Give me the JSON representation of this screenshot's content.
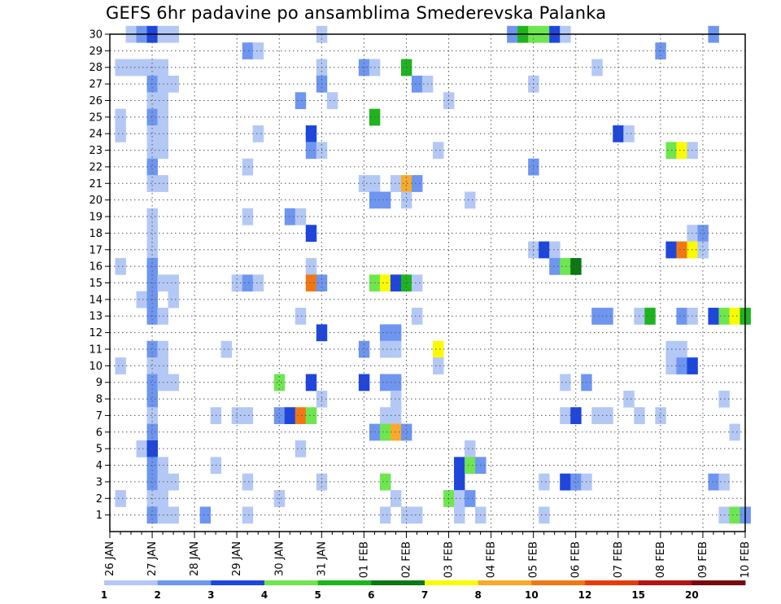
{
  "chart_data": {
    "type": "heatmap",
    "title": "GEFS 6hr padavine po ansamblima Smederevska Palanka",
    "xlabel": "",
    "ylabel": "",
    "x_tick_labels": [
      "26 JAN",
      "27 JAN",
      "28 JAN",
      "29 JAN",
      "30 JAN",
      "31 JAN",
      "01 FEB",
      "02 FEB",
      "03 FEB",
      "04 FEB",
      "05 FEB",
      "06 FEB",
      "07 FEB",
      "08 FEB",
      "09 FEB",
      "10 FEB"
    ],
    "y_tick_labels": [
      "1",
      "2",
      "3",
      "4",
      "5",
      "6",
      "7",
      "8",
      "9",
      "10",
      "11",
      "12",
      "13",
      "14",
      "15",
      "16",
      "17",
      "18",
      "19",
      "20",
      "21",
      "22",
      "23",
      "24",
      "25",
      "26",
      "27",
      "28",
      "29",
      "30"
    ],
    "time_steps_per_day": 4,
    "n_time_steps": 60,
    "grid": true,
    "colorbar": {
      "position": "bottom",
      "labels": [
        "1",
        "2",
        "3",
        "4",
        "5",
        "6",
        "7",
        "8",
        "10",
        "12",
        "15",
        "20"
      ],
      "colors": [
        "#b4c8f5",
        "#6e96f0",
        "#1e46dc",
        "#6ee650",
        "#1eb41e",
        "#0a7814",
        "#fafa00",
        "#faaa28",
        "#f07814",
        "#e63c0a",
        "#b41414",
        "#780a0a"
      ]
    },
    "cells": [
      [
        2,
        30,
        1
      ],
      [
        3,
        30,
        2
      ],
      [
        4,
        30,
        3
      ],
      [
        5,
        30,
        1
      ],
      [
        6,
        30,
        1
      ],
      [
        20,
        30,
        1
      ],
      [
        38,
        30,
        2
      ],
      [
        39,
        30,
        5
      ],
      [
        40,
        30,
        4
      ],
      [
        41,
        30,
        4
      ],
      [
        42,
        30,
        3
      ],
      [
        43,
        30,
        1
      ],
      [
        57,
        30,
        2
      ],
      [
        13,
        29,
        2
      ],
      [
        14,
        29,
        1
      ],
      [
        52,
        29,
        2
      ],
      [
        1,
        28,
        1
      ],
      [
        2,
        28,
        1
      ],
      [
        3,
        28,
        1
      ],
      [
        4,
        28,
        1
      ],
      [
        5,
        28,
        1
      ],
      [
        20,
        28,
        1
      ],
      [
        24,
        28,
        2
      ],
      [
        25,
        28,
        1
      ],
      [
        28,
        28,
        5
      ],
      [
        46,
        28,
        1
      ],
      [
        4,
        27,
        2
      ],
      [
        5,
        27,
        1
      ],
      [
        6,
        27,
        1
      ],
      [
        20,
        27,
        2
      ],
      [
        29,
        27,
        2
      ],
      [
        30,
        27,
        1
      ],
      [
        40,
        27,
        1
      ],
      [
        4,
        26,
        1
      ],
      [
        5,
        26,
        1
      ],
      [
        18,
        26,
        2
      ],
      [
        21,
        26,
        1
      ],
      [
        32,
        26,
        1
      ],
      [
        1,
        25,
        1
      ],
      [
        4,
        25,
        2
      ],
      [
        5,
        25,
        1
      ],
      [
        25,
        25,
        5
      ],
      [
        1,
        24,
        1
      ],
      [
        4,
        24,
        1
      ],
      [
        5,
        24,
        1
      ],
      [
        14,
        24,
        1
      ],
      [
        19,
        24,
        3
      ],
      [
        48,
        24,
        3
      ],
      [
        49,
        24,
        1
      ],
      [
        4,
        23,
        1
      ],
      [
        5,
        23,
        1
      ],
      [
        19,
        23,
        2
      ],
      [
        20,
        23,
        1
      ],
      [
        31,
        23,
        1
      ],
      [
        53,
        23,
        4
      ],
      [
        54,
        23,
        7
      ],
      [
        55,
        23,
        1
      ],
      [
        4,
        22,
        2
      ],
      [
        13,
        22,
        1
      ],
      [
        40,
        22,
        2
      ],
      [
        4,
        21,
        1
      ],
      [
        5,
        21,
        1
      ],
      [
        24,
        21,
        1
      ],
      [
        25,
        21,
        1
      ],
      [
        27,
        21,
        1
      ],
      [
        28,
        21,
        8
      ],
      [
        29,
        21,
        2
      ],
      [
        25,
        20,
        2
      ],
      [
        26,
        20,
        2
      ],
      [
        28,
        20,
        1
      ],
      [
        34,
        20,
        1
      ],
      [
        4,
        19,
        1
      ],
      [
        13,
        19,
        1
      ],
      [
        17,
        19,
        2
      ],
      [
        18,
        19,
        1
      ],
      [
        4,
        18,
        1
      ],
      [
        19,
        18,
        3
      ],
      [
        55,
        18,
        1
      ],
      [
        56,
        18,
        2
      ],
      [
        4,
        17,
        1
      ],
      [
        40,
        17,
        1
      ],
      [
        41,
        17,
        3
      ],
      [
        42,
        17,
        1
      ],
      [
        53,
        17,
        3
      ],
      [
        54,
        17,
        9
      ],
      [
        55,
        17,
        7
      ],
      [
        56,
        17,
        1
      ],
      [
        1,
        16,
        1
      ],
      [
        4,
        16,
        2
      ],
      [
        19,
        16,
        1
      ],
      [
        42,
        16,
        2
      ],
      [
        43,
        16,
        4
      ],
      [
        44,
        16,
        6
      ],
      [
        4,
        15,
        2
      ],
      [
        5,
        15,
        1
      ],
      [
        6,
        15,
        1
      ],
      [
        12,
        15,
        1
      ],
      [
        13,
        15,
        2
      ],
      [
        14,
        15,
        1
      ],
      [
        19,
        15,
        9
      ],
      [
        20,
        15,
        2
      ],
      [
        25,
        15,
        4
      ],
      [
        26,
        15,
        7
      ],
      [
        27,
        15,
        3
      ],
      [
        28,
        15,
        5
      ],
      [
        29,
        15,
        1
      ],
      [
        3,
        14,
        1
      ],
      [
        4,
        14,
        2
      ],
      [
        6,
        14,
        1
      ],
      [
        4,
        13,
        2
      ],
      [
        5,
        13,
        1
      ],
      [
        18,
        13,
        1
      ],
      [
        29,
        13,
        1
      ],
      [
        46,
        13,
        2
      ],
      [
        47,
        13,
        2
      ],
      [
        50,
        13,
        1
      ],
      [
        51,
        13,
        5
      ],
      [
        54,
        13,
        2
      ],
      [
        55,
        13,
        1
      ],
      [
        57,
        13,
        3
      ],
      [
        58,
        13,
        4
      ],
      [
        59,
        13,
        7
      ],
      [
        60,
        13,
        5
      ],
      [
        20,
        12,
        3
      ],
      [
        26,
        12,
        2
      ],
      [
        27,
        12,
        2
      ],
      [
        4,
        11,
        2
      ],
      [
        5,
        11,
        1
      ],
      [
        11,
        11,
        1
      ],
      [
        24,
        11,
        2
      ],
      [
        26,
        11,
        1
      ],
      [
        27,
        11,
        1
      ],
      [
        31,
        11,
        7
      ],
      [
        53,
        11,
        1
      ],
      [
        54,
        11,
        1
      ],
      [
        4,
        10,
        1
      ],
      [
        5,
        10,
        1
      ],
      [
        31,
        10,
        1
      ],
      [
        53,
        10,
        1
      ],
      [
        54,
        10,
        2
      ],
      [
        55,
        10,
        3
      ],
      [
        1,
        10,
        1
      ],
      [
        4,
        9,
        2
      ],
      [
        5,
        9,
        1
      ],
      [
        6,
        9,
        1
      ],
      [
        16,
        9,
        4
      ],
      [
        19,
        9,
        3
      ],
      [
        24,
        9,
        3
      ],
      [
        26,
        9,
        2
      ],
      [
        27,
        9,
        2
      ],
      [
        43,
        9,
        1
      ],
      [
        45,
        9,
        2
      ],
      [
        4,
        8,
        2
      ],
      [
        20,
        8,
        1
      ],
      [
        27,
        8,
        1
      ],
      [
        49,
        8,
        1
      ],
      [
        58,
        8,
        1
      ],
      [
        4,
        7,
        1
      ],
      [
        10,
        7,
        1
      ],
      [
        12,
        7,
        1
      ],
      [
        13,
        7,
        1
      ],
      [
        16,
        7,
        2
      ],
      [
        17,
        7,
        3
      ],
      [
        18,
        7,
        9
      ],
      [
        19,
        7,
        4
      ],
      [
        26,
        7,
        1
      ],
      [
        27,
        7,
        1
      ],
      [
        43,
        7,
        1
      ],
      [
        44,
        7,
        3
      ],
      [
        46,
        7,
        1
      ],
      [
        47,
        7,
        1
      ],
      [
        50,
        7,
        1
      ],
      [
        52,
        7,
        1
      ],
      [
        4,
        6,
        2
      ],
      [
        25,
        6,
        2
      ],
      [
        26,
        6,
        4
      ],
      [
        27,
        6,
        8
      ],
      [
        28,
        6,
        2
      ],
      [
        59,
        6,
        1
      ],
      [
        3,
        5,
        1
      ],
      [
        4,
        5,
        3
      ],
      [
        18,
        5,
        1
      ],
      [
        34,
        5,
        1
      ],
      [
        4,
        4,
        2
      ],
      [
        5,
        4,
        1
      ],
      [
        10,
        4,
        1
      ],
      [
        33,
        4,
        3
      ],
      [
        34,
        4,
        4
      ],
      [
        35,
        4,
        2
      ],
      [
        4,
        3,
        2
      ],
      [
        5,
        3,
        1
      ],
      [
        6,
        3,
        1
      ],
      [
        13,
        3,
        1
      ],
      [
        20,
        3,
        1
      ],
      [
        26,
        3,
        4
      ],
      [
        33,
        3,
        3
      ],
      [
        41,
        3,
        1
      ],
      [
        43,
        3,
        3
      ],
      [
        44,
        3,
        2
      ],
      [
        45,
        3,
        1
      ],
      [
        57,
        3,
        2
      ],
      [
        58,
        3,
        1
      ],
      [
        1,
        2,
        1
      ],
      [
        4,
        2,
        1
      ],
      [
        5,
        2,
        1
      ],
      [
        16,
        2,
        1
      ],
      [
        27,
        2,
        1
      ],
      [
        32,
        2,
        4
      ],
      [
        33,
        2,
        1
      ],
      [
        34,
        2,
        2
      ],
      [
        4,
        1,
        2
      ],
      [
        5,
        1,
        1
      ],
      [
        6,
        1,
        1
      ],
      [
        9,
        1,
        2
      ],
      [
        13,
        1,
        1
      ],
      [
        26,
        1,
        1
      ],
      [
        28,
        1,
        1
      ],
      [
        29,
        1,
        1
      ],
      [
        33,
        1,
        1
      ],
      [
        35,
        1,
        1
      ],
      [
        41,
        1,
        1
      ],
      [
        58,
        1,
        1
      ],
      [
        59,
        1,
        4
      ],
      [
        60,
        1,
        2
      ]
    ]
  }
}
